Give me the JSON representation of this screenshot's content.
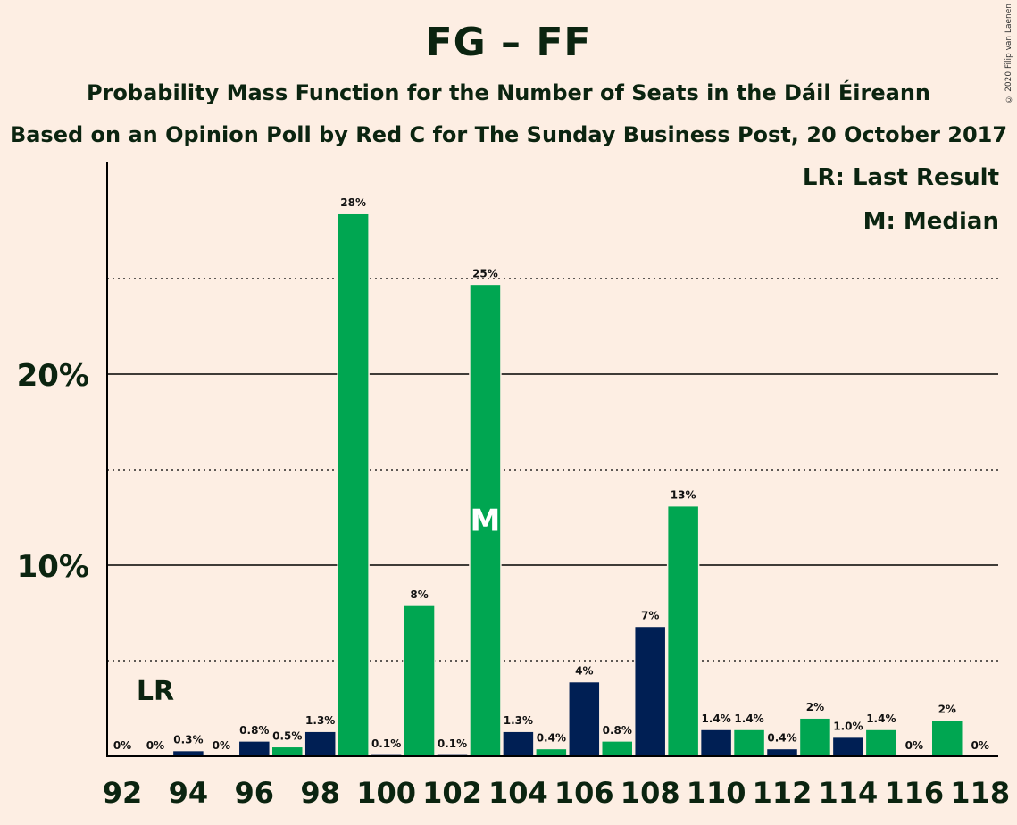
{
  "title": "FG – FF",
  "subtitle_1": "Probability Mass Function for the Number of Seats in the Dáil Éireann",
  "subtitle_2": "Based on an Opinion Poll by Red C for The Sunday Business Post, 20 October 2017",
  "copyright": "© 2020 Filip van Laenen",
  "legend": {
    "last_result": "LR: Last Result",
    "median": "M: Median"
  },
  "colors": {
    "background": "#FDEEE3",
    "green": "#00A651",
    "navy": "#001F54",
    "text": "#0B2410"
  },
  "chart_data": {
    "type": "bar",
    "x": [
      92,
      93,
      94,
      95,
      96,
      97,
      98,
      99,
      100,
      101,
      102,
      103,
      104,
      105,
      106,
      107,
      108,
      109,
      110,
      111,
      112,
      113,
      114,
      115,
      116,
      117,
      118
    ],
    "values": [
      0,
      0,
      0.3,
      0,
      0.8,
      0.5,
      1.3,
      28.4,
      0.1,
      7.9,
      0.1,
      24.7,
      1.3,
      0.4,
      3.9,
      0.8,
      6.8,
      13.1,
      1.4,
      1.4,
      0.4,
      2.0,
      1.0,
      1.4,
      0,
      1.9,
      0
    ],
    "data_labels": [
      "0%",
      "0%",
      "0.3%",
      "0%",
      "0.8%",
      "0.5%",
      "1.3%",
      "28%",
      "0.1%",
      "8%",
      "0.1%",
      "25%",
      "1.3%",
      "0.4%",
      "4%",
      "0.8%",
      "7%",
      "13%",
      "1.4%",
      "1.4%",
      "0.4%",
      "2%",
      "1.0%",
      "1.4%",
      "0%",
      "2%",
      "0%"
    ],
    "bar_colors": [
      "green",
      "navy",
      "navy",
      "green",
      "navy",
      "green",
      "navy",
      "green",
      "navy",
      "green",
      "navy",
      "green",
      "navy",
      "green",
      "navy",
      "green",
      "navy",
      "green",
      "navy",
      "green",
      "navy",
      "green",
      "navy",
      "green",
      "navy",
      "green",
      "navy"
    ],
    "x_ticks": [
      "92",
      "94",
      "96",
      "98",
      "100",
      "102",
      "104",
      "106",
      "108",
      "110",
      "112",
      "114",
      "116",
      "118"
    ],
    "y_ticks": [
      {
        "value": 10,
        "label": "10%"
      },
      {
        "value": 20,
        "label": "20%"
      }
    ],
    "y_minor_gridlines": [
      5,
      15,
      25
    ],
    "ylim": [
      0,
      31
    ],
    "last_result": {
      "seat": 93,
      "label": "LR"
    },
    "median": {
      "seat": 103,
      "label": "M"
    }
  }
}
